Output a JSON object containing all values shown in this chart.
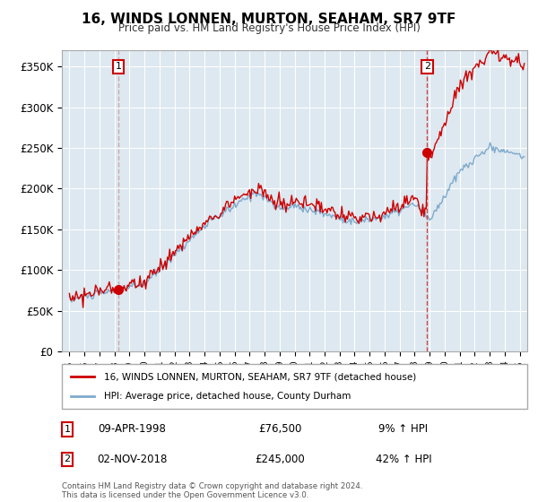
{
  "title": "16, WINDS LONNEN, MURTON, SEAHAM, SR7 9TF",
  "subtitle": "Price paid vs. HM Land Registry's House Price Index (HPI)",
  "ylabel_ticks": [
    "£0",
    "£50K",
    "£100K",
    "£150K",
    "£200K",
    "£250K",
    "£300K",
    "£350K"
  ],
  "ytick_values": [
    0,
    50000,
    100000,
    150000,
    200000,
    250000,
    300000,
    350000
  ],
  "ylim": [
    0,
    370000
  ],
  "xlim_start": 1994.5,
  "xlim_end": 2025.5,
  "transaction1": {
    "date_label": "09-APR-1998",
    "year": 1998.27,
    "price": 76500,
    "pct": "9%",
    "label": "1"
  },
  "transaction2": {
    "date_label": "02-NOV-2018",
    "year": 2018.83,
    "price": 245000,
    "pct": "42%",
    "label": "2"
  },
  "legend_line1": "16, WINDS LONNEN, MURTON, SEAHAM, SR7 9TF (detached house)",
  "legend_line2": "HPI: Average price, detached house, County Durham",
  "footnote": "Contains HM Land Registry data © Crown copyright and database right 2024.\nThis data is licensed under the Open Government Licence v3.0.",
  "red_color": "#cc0000",
  "blue_color": "#7faacc",
  "plot_bg_color": "#dde8f0",
  "background_color": "#ffffff",
  "grid_color": "#ffffff",
  "vline1_color": "#ccaaaa",
  "vline2_color": "#cc4444"
}
